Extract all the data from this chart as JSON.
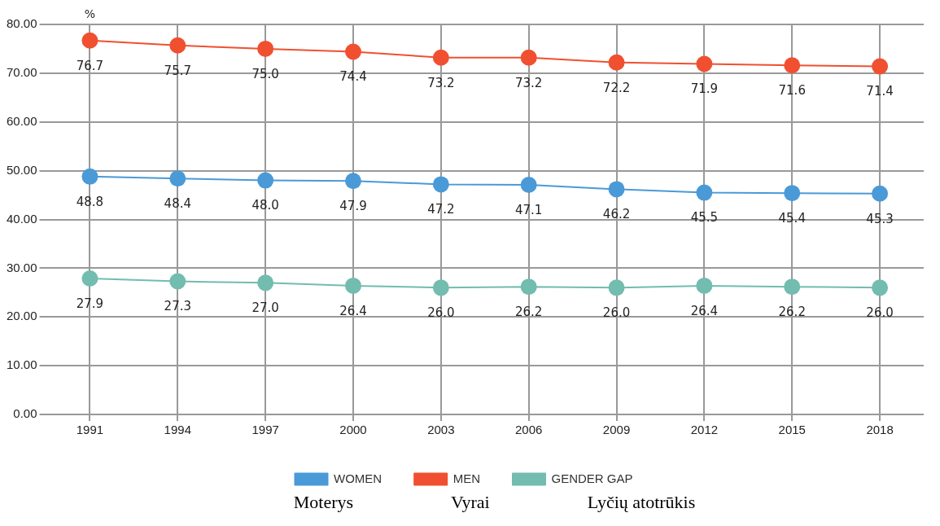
{
  "chart_data": {
    "type": "line",
    "ylabel": "%",
    "categories": [
      "1991",
      "1994",
      "1997",
      "2000",
      "2003",
      "2006",
      "2009",
      "2012",
      "2015",
      "2018"
    ],
    "series": [
      {
        "name": "WOMEN",
        "color": "#4a9ad8",
        "values": [
          48.8,
          48.4,
          48.0,
          47.9,
          47.2,
          47.1,
          46.2,
          45.5,
          45.4,
          45.3
        ],
        "value_labels": [
          "48.8",
          "48.4",
          "48.0",
          "47.9",
          "47.2",
          "47.1",
          "46.2",
          "45.5",
          "45.4",
          "45.3"
        ]
      },
      {
        "name": "MEN",
        "color": "#f05030",
        "values": [
          76.7,
          75.7,
          75.0,
          74.4,
          73.2,
          73.2,
          72.2,
          71.9,
          71.6,
          71.4
        ],
        "value_labels": [
          "76.7",
          "75.7",
          "75.0",
          "74.4",
          "73.2",
          "73.2",
          "72.2",
          "71.9",
          "71.6",
          "71.4"
        ]
      },
      {
        "name": "GENDER GAP",
        "color": "#72bcb0",
        "values": [
          27.9,
          27.3,
          27.0,
          26.4,
          26.0,
          26.2,
          26.0,
          26.4,
          26.2,
          26.0
        ],
        "value_labels": [
          "27.9",
          "27.3",
          "27.0",
          "26.4",
          "26.0",
          "26.2",
          "26.0",
          "26.4",
          "26.2",
          "26.0"
        ]
      }
    ],
    "ylim": [
      0,
      80
    ],
    "yticks": [
      {
        "value": 0,
        "label": "0.00"
      },
      {
        "value": 10,
        "label": "10.00"
      },
      {
        "value": 20,
        "label": "20.00"
      },
      {
        "value": 30,
        "label": "30.00"
      },
      {
        "value": 40,
        "label": "40.00"
      },
      {
        "value": 50,
        "label": "50.00"
      },
      {
        "value": 60,
        "label": "60.00"
      },
      {
        "value": 70,
        "label": "70.00"
      },
      {
        "value": 80,
        "label": "80.00"
      }
    ],
    "grid": true,
    "legend": "bottom",
    "marker": "circle",
    "line_style": "solid",
    "annotations": [
      "Moterys",
      "Vyrai",
      "Lyčių atotrūkis"
    ]
  }
}
